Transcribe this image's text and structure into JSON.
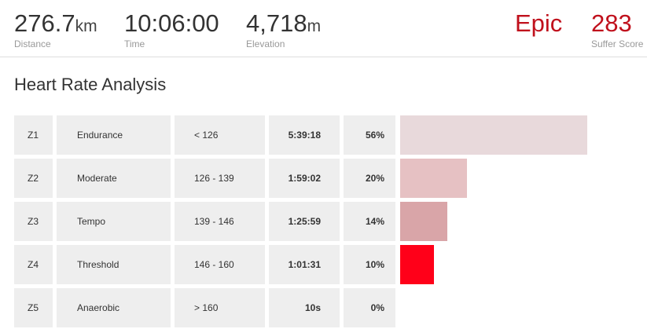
{
  "header": {
    "stats": [
      {
        "value": "276.7",
        "unit": "km",
        "label": "Distance"
      },
      {
        "value": "10:06:00",
        "label": "Time"
      },
      {
        "value": "4,718",
        "unit": "m",
        "label": "Elevation"
      }
    ],
    "intensity": "Epic",
    "suffer_score": "283",
    "suffer_score_label": "Suffer Score"
  },
  "title": "Heart Rate Analysis",
  "zones": [
    {
      "zone": "Z1",
      "name": "Endurance",
      "range": "< 126",
      "time": "5:39:18",
      "percent": 56,
      "percent_label": "56%",
      "color": "#e8d9db"
    },
    {
      "zone": "Z2",
      "name": "Moderate",
      "range": "126 - 139",
      "time": "1:59:02",
      "percent": 20,
      "percent_label": "20%",
      "color": "#e6c1c3"
    },
    {
      "zone": "Z3",
      "name": "Tempo",
      "range": "139 - 146",
      "time": "1:25:59",
      "percent": 14,
      "percent_label": "14%",
      "color": "#d9a5a8"
    },
    {
      "zone": "Z4",
      "name": "Threshold",
      "range": "146 - 160",
      "time": "1:01:31",
      "percent": 10,
      "percent_label": "10%",
      "color": "#ff0019"
    },
    {
      "zone": "Z5",
      "name": "Anaerobic",
      "range": "> 160",
      "time": "10s",
      "percent": 0,
      "percent_label": "0%",
      "color": "#c0001a"
    }
  ]
}
